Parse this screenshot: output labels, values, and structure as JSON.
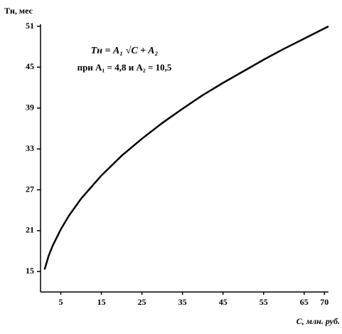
{
  "chart_data": {
    "type": "line",
    "y_label": "Tн, мес",
    "x_label": "C, млн. руб.",
    "annotations": [
      "Tн = A₁ √C + A₂",
      "при A₁ = 4,8 и A₂ = 10,5"
    ],
    "x": [
      1,
      2,
      3,
      5,
      7,
      10,
      15,
      20,
      25,
      30,
      35,
      40,
      45,
      50,
      55,
      60,
      65,
      70,
      71
    ],
    "values": [
      15.3,
      17.3,
      18.8,
      21.2,
      23.2,
      25.7,
      29.1,
      32.0,
      34.5,
      36.8,
      38.9,
      40.9,
      42.7,
      44.4,
      46.1,
      47.7,
      49.2,
      50.7,
      51.0
    ],
    "color": "#000000",
    "xlim": [
      0,
      71
    ],
    "xticks": [
      5,
      15,
      25,
      35,
      45,
      55,
      65,
      70
    ],
    "ylim": [
      12,
      51
    ],
    "yticks": [
      15,
      21,
      27,
      33,
      39,
      45,
      51
    ],
    "grid": false
  }
}
